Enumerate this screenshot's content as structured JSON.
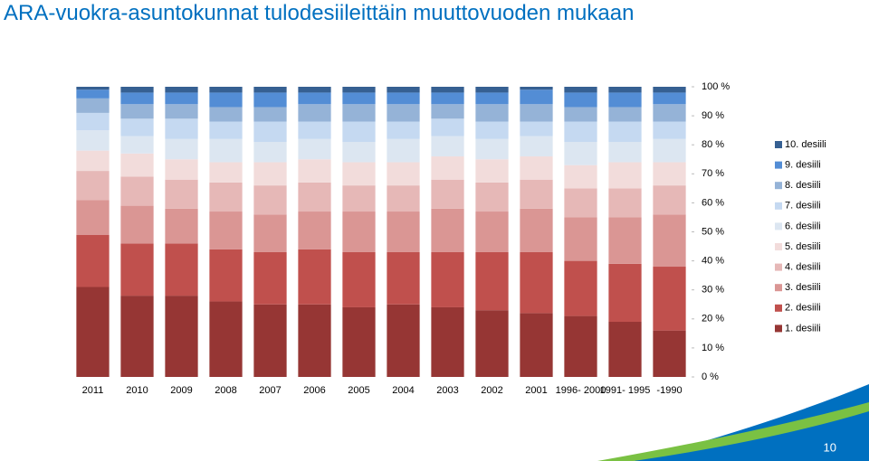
{
  "chart_data": {
    "type": "stacked_bar",
    "title": "ARA-vuokra-asuntokunnat tulodesiileittäin muuttovuoden mukaan",
    "categories": [
      "2011",
      "2010",
      "2009",
      "2008",
      "2007",
      "2006",
      "2005",
      "2004",
      "2003",
      "2002",
      "2001",
      "1996- 2000",
      "1991- 1995",
      "-1990"
    ],
    "series": [
      {
        "name": "1. desiili",
        "color": "#963634",
        "values": [
          31,
          28,
          28,
          26,
          25,
          25,
          24,
          25,
          24,
          23,
          22,
          21,
          19,
          16
        ]
      },
      {
        "name": "2. desiili",
        "color": "#c0504d",
        "values": [
          18,
          18,
          18,
          18,
          18,
          19,
          19,
          18,
          19,
          20,
          21,
          19,
          20,
          22
        ]
      },
      {
        "name": "3. desiili",
        "color": "#da9694",
        "values": [
          12,
          13,
          12,
          13,
          13,
          13,
          14,
          14,
          15,
          14,
          15,
          15,
          16,
          18
        ]
      },
      {
        "name": "4. desiili",
        "color": "#e6b8b7",
        "values": [
          10,
          10,
          10,
          10,
          10,
          10,
          9,
          9,
          10,
          10,
          10,
          10,
          10,
          10
        ]
      },
      {
        "name": "5. desiili",
        "color": "#f2dcdb",
        "values": [
          7,
          8,
          7,
          7,
          8,
          8,
          8,
          8,
          8,
          8,
          8,
          8,
          9,
          8
        ]
      },
      {
        "name": "6. desiili",
        "color": "#dce6f1",
        "values": [
          7,
          6,
          7,
          8,
          7,
          7,
          7,
          8,
          7,
          7,
          7,
          8,
          7,
          8
        ]
      },
      {
        "name": "7. desiili",
        "color": "#c5d9f1",
        "values": [
          6,
          6,
          7,
          6,
          7,
          6,
          7,
          6,
          6,
          6,
          5,
          7,
          7,
          6
        ]
      },
      {
        "name": "8. desiili",
        "color": "#95b3d7",
        "values": [
          5,
          5,
          5,
          5,
          5,
          6,
          6,
          6,
          5,
          6,
          6,
          5,
          5,
          6
        ]
      },
      {
        "name": "9. desiili",
        "color": "#538dd5",
        "values": [
          3,
          4,
          4,
          5,
          5,
          4,
          4,
          4,
          4,
          4,
          5,
          5,
          5,
          4
        ]
      },
      {
        "name": "10. desiili",
        "color": "#366092",
        "values": [
          1,
          2,
          2,
          2,
          2,
          2,
          2,
          2,
          2,
          2,
          1,
          2,
          2,
          2
        ]
      }
    ],
    "ylim": [
      0,
      100
    ],
    "yticks": [
      {
        "value": 0,
        "label": "0 %"
      },
      {
        "value": 10,
        "label": "10 %"
      },
      {
        "value": 20,
        "label": "20 %"
      },
      {
        "value": 30,
        "label": "30 %"
      },
      {
        "value": 40,
        "label": "40 %"
      },
      {
        "value": 50,
        "label": "50 %"
      },
      {
        "value": 60,
        "label": "60 %"
      },
      {
        "value": 70,
        "label": "70 %"
      },
      {
        "value": 80,
        "label": "80 %"
      },
      {
        "value": 90,
        "label": "90 %"
      },
      {
        "value": 100,
        "label": "100 %"
      }
    ],
    "legend": "right"
  },
  "page_number": "10"
}
